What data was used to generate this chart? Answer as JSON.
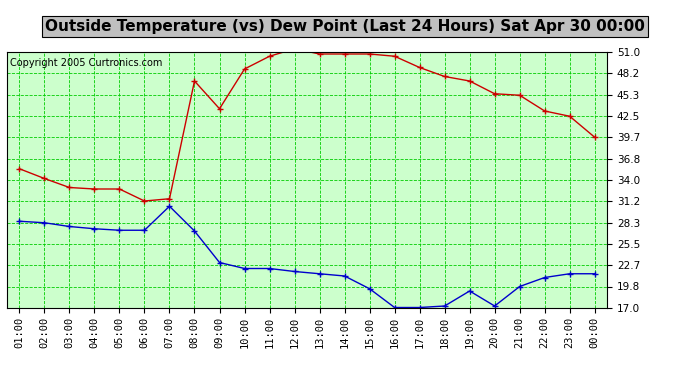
{
  "title": "Outside Temperature (vs) Dew Point (Last 24 Hours) Sat Apr 30 00:00",
  "copyright": "Copyright 2005 Curtronics.com",
  "x_labels": [
    "01:00",
    "02:00",
    "03:00",
    "04:00",
    "05:00",
    "06:00",
    "07:00",
    "08:00",
    "09:00",
    "10:00",
    "11:00",
    "12:00",
    "13:00",
    "14:00",
    "15:00",
    "16:00",
    "17:00",
    "18:00",
    "19:00",
    "20:00",
    "21:00",
    "22:00",
    "23:00",
    "00:00"
  ],
  "y_ticks": [
    17.0,
    19.8,
    22.7,
    25.5,
    28.3,
    31.2,
    34.0,
    36.8,
    39.7,
    42.5,
    45.3,
    48.2,
    51.0
  ],
  "y_min": 17.0,
  "y_max": 51.0,
  "temp_data": [
    35.5,
    34.2,
    33.0,
    32.8,
    32.8,
    31.2,
    31.5,
    47.2,
    43.5,
    48.8,
    50.5,
    51.5,
    50.8,
    50.8,
    50.8,
    50.5,
    49.0,
    47.8,
    47.2,
    45.5,
    45.3,
    43.2,
    42.5,
    39.7
  ],
  "dew_data": [
    28.5,
    28.3,
    27.8,
    27.5,
    27.3,
    27.3,
    30.5,
    27.2,
    23.0,
    22.2,
    22.2,
    21.8,
    21.5,
    21.2,
    19.5,
    17.0,
    17.0,
    17.2,
    19.2,
    17.2,
    19.8,
    21.0,
    21.5,
    21.5
  ],
  "temp_color": "#cc0000",
  "dew_color": "#0000cc",
  "plot_bg": "#ccffcc",
  "fig_bg": "#ffffff",
  "title_bg": "#c0c0c0",
  "grid_color": "#00cc00",
  "border_color": "#000000",
  "title_fontsize": 11,
  "tick_fontsize": 7.5,
  "copyright_fontsize": 7
}
